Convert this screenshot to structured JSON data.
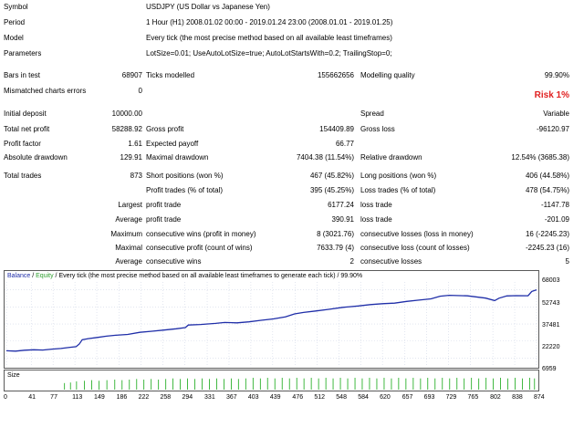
{
  "colors": {
    "balance": "#1f2ea8",
    "equity": "#2e9e2e",
    "size_bars": "#2db12d",
    "risk": "#e02020",
    "grid": "#cfd6e6"
  },
  "report": {
    "symbol_label": "Symbol",
    "symbol_value": "USDJPY (US Dollar vs Japanese Yen)",
    "period_label": "Period",
    "period_value": "1 Hour (H1) 2008.01.02 00:00 - 2019.01.24 23:00 (2008.01.01 - 2019.01.25)",
    "model_label": "Model",
    "model_value": "Every tick (the most precise method based on all available least timeframes)",
    "parameters_label": "Parameters",
    "parameters_value": "LotSize=0.01; UseAutoLotSize=true; AutoLotStartsWith=0.2; TrailingStop=0;",
    "bars_label": "Bars in test",
    "bars_value": "68907",
    "ticks_label": "Ticks modelled",
    "ticks_value": "155662656",
    "quality_label": "Modelling quality",
    "quality_value": "99.90%",
    "mismatch_label": "Mismatched charts errors",
    "mismatch_value": "0",
    "risk_label": "Risk 1%",
    "deposit_label": "Initial deposit",
    "deposit_value": "10000.00",
    "spread_label": "Spread",
    "spread_value": "Variable",
    "net_profit_label": "Total net profit",
    "net_profit_value": "58288.92",
    "gross_profit_label": "Gross profit",
    "gross_profit_value": "154409.89",
    "gross_loss_label": "Gross loss",
    "gross_loss_value": "-96120.97",
    "profit_factor_label": "Profit factor",
    "profit_factor_value": "1.61",
    "expected_payoff_label": "Expected payoff",
    "expected_payoff_value": "66.77",
    "abs_dd_label": "Absolute drawdown",
    "abs_dd_value": "129.91",
    "max_dd_label": "Maximal drawdown",
    "max_dd_value": "7404.38 (11.54%)",
    "rel_dd_label": "Relative drawdown",
    "rel_dd_value": "12.54% (3685.38)",
    "total_trades_label": "Total trades",
    "total_trades_value": "873",
    "short_label": "Short positions (won %)",
    "short_value": "467 (45.82%)",
    "long_label": "Long positions (won %)",
    "long_value": "406 (44.58%)",
    "profit_trades_label": "Profit trades (% of total)",
    "profit_trades_value": "395 (45.25%)",
    "loss_trades_label": "Loss trades (% of total)",
    "loss_trades_value": "478 (54.75%)",
    "largest_label": "Largest",
    "largest_profit_label": "profit trade",
    "largest_profit_value": "6177.24",
    "largest_loss_label": "loss trade",
    "largest_loss_value": "-1147.78",
    "average_label": "Average",
    "average_profit_label": "profit trade",
    "average_profit_value": "390.91",
    "average_loss_label": "loss trade",
    "average_loss_value": "-201.09",
    "maximum_label": "Maximum",
    "max_cons_wins_label": "consecutive wins (profit in money)",
    "max_cons_wins_value": "8 (3021.76)",
    "max_cons_losses_label": "consecutive losses (loss in money)",
    "max_cons_losses_value": "16 (-2245.23)",
    "maximal_label": "Maximal",
    "maximal_cons_profit_label": "consecutive profit (count of wins)",
    "maximal_cons_profit_value": "7633.79 (4)",
    "maximal_cons_loss_label": "consecutive loss (count of losses)",
    "maximal_cons_loss_value": "-2245.23 (16)",
    "avg2_label": "Average",
    "avg_cons_wins_label": "consecutive wins",
    "avg_cons_wins_value": "2",
    "avg_cons_losses_label": "consecutive losses",
    "avg_cons_losses_value": "5"
  },
  "chart_data": {
    "type": "line",
    "legend_balance": "Balance",
    "legend_sep": " / ",
    "legend_equity": "Equity",
    "legend_rest": " / Every tick (the most precise method based on all available least timeframes to generate each tick) / 99.90%",
    "size_label": "Size",
    "ylim": [
      0,
      75000
    ],
    "y_ticks": [
      "68003",
      "52743",
      "37481",
      "22220",
      "6959"
    ],
    "x_ticks": [
      "0",
      "41",
      "77",
      "113",
      "149",
      "186",
      "222",
      "258",
      "294",
      "331",
      "367",
      "403",
      "439",
      "476",
      "512",
      "548",
      "584",
      "620",
      "657",
      "693",
      "729",
      "765",
      "802",
      "838",
      "874"
    ],
    "x_max": 874,
    "balance_points": [
      [
        0,
        13500
      ],
      [
        15,
        13200
      ],
      [
        30,
        14000
      ],
      [
        45,
        14400
      ],
      [
        60,
        14200
      ],
      [
        75,
        15000
      ],
      [
        90,
        15600
      ],
      [
        105,
        16600
      ],
      [
        115,
        17200
      ],
      [
        120,
        19500
      ],
      [
        125,
        23400
      ],
      [
        135,
        24400
      ],
      [
        150,
        25400
      ],
      [
        165,
        26600
      ],
      [
        180,
        27400
      ],
      [
        200,
        28100
      ],
      [
        220,
        30000
      ],
      [
        240,
        31000
      ],
      [
        260,
        32000
      ],
      [
        280,
        33200
      ],
      [
        295,
        34200
      ],
      [
        300,
        36500
      ],
      [
        320,
        37000
      ],
      [
        345,
        38000
      ],
      [
        360,
        38800
      ],
      [
        380,
        38500
      ],
      [
        400,
        39400
      ],
      [
        420,
        40800
      ],
      [
        440,
        42000
      ],
      [
        460,
        43800
      ],
      [
        475,
        46500
      ],
      [
        490,
        47800
      ],
      [
        510,
        49100
      ],
      [
        530,
        50500
      ],
      [
        555,
        52300
      ],
      [
        580,
        53600
      ],
      [
        600,
        54800
      ],
      [
        620,
        55600
      ],
      [
        640,
        56100
      ],
      [
        660,
        57600
      ],
      [
        680,
        58800
      ],
      [
        700,
        59900
      ],
      [
        715,
        62300
      ],
      [
        730,
        63100
      ],
      [
        760,
        62600
      ],
      [
        790,
        60600
      ],
      [
        805,
        58400
      ],
      [
        812,
        60500
      ],
      [
        825,
        62500
      ],
      [
        840,
        62800
      ],
      [
        860,
        62700
      ],
      [
        866,
        66500
      ],
      [
        874,
        68003
      ]
    ],
    "size_bars": [
      [
        95,
        0.55
      ],
      [
        105,
        0.6
      ],
      [
        115,
        0.7
      ],
      [
        128,
        0.75
      ],
      [
        140,
        0.8
      ],
      [
        152,
        0.75
      ],
      [
        165,
        0.8
      ],
      [
        178,
        0.85
      ],
      [
        190,
        0.8
      ],
      [
        202,
        0.85
      ],
      [
        214,
        0.9
      ],
      [
        226,
        0.85
      ],
      [
        238,
        0.9
      ],
      [
        250,
        0.85
      ],
      [
        262,
        0.9
      ],
      [
        274,
        0.95
      ],
      [
        286,
        0.9
      ],
      [
        298,
        0.95
      ],
      [
        310,
        0.9
      ],
      [
        322,
        0.95
      ],
      [
        334,
        0.9
      ],
      [
        346,
        0.95
      ],
      [
        358,
        0.9
      ],
      [
        370,
        0.95
      ],
      [
        382,
        0.9
      ],
      [
        394,
        0.95
      ],
      [
        406,
        1.0
      ],
      [
        418,
        0.95
      ],
      [
        430,
        1.0
      ],
      [
        442,
        0.95
      ],
      [
        454,
        1.0
      ],
      [
        466,
        0.95
      ],
      [
        478,
        1.0
      ],
      [
        490,
        0.95
      ],
      [
        502,
        1.0
      ],
      [
        514,
        0.95
      ],
      [
        526,
        1.0
      ],
      [
        538,
        0.95
      ],
      [
        550,
        1.0
      ],
      [
        562,
        0.95
      ],
      [
        574,
        1.0
      ],
      [
        586,
        0.95
      ],
      [
        598,
        1.0
      ],
      [
        610,
        0.95
      ],
      [
        622,
        1.0
      ],
      [
        634,
        0.95
      ],
      [
        646,
        1.0
      ],
      [
        658,
        0.95
      ],
      [
        670,
        1.0
      ],
      [
        682,
        0.95
      ],
      [
        694,
        1.0
      ],
      [
        706,
        0.95
      ],
      [
        718,
        1.0
      ],
      [
        730,
        0.95
      ],
      [
        742,
        1.0
      ],
      [
        754,
        0.95
      ],
      [
        766,
        1.0
      ],
      [
        778,
        0.95
      ],
      [
        790,
        1.0
      ],
      [
        802,
        0.95
      ],
      [
        814,
        1.0
      ],
      [
        826,
        0.95
      ],
      [
        838,
        1.0
      ],
      [
        850,
        0.95
      ],
      [
        862,
        1.0
      ],
      [
        870,
        0.95
      ]
    ]
  }
}
